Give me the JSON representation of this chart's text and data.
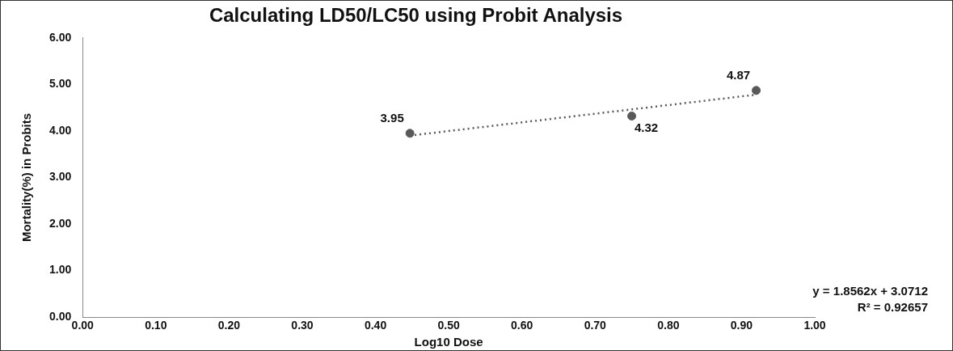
{
  "chart_data": {
    "type": "scatter",
    "title": "Calculating LD50/LC50 using Probit Analysis",
    "xlabel": "Log10 Dose",
    "ylabel": "Mortality(%) in Probits",
    "series": [
      {
        "color": "#595959",
        "x": [
          0.447,
          0.75,
          0.92
        ],
        "values": [
          3.95,
          4.32,
          4.87
        ],
        "value_labels": [
          "3.95",
          "4.32",
          "4.87"
        ]
      },
      {
        "type": "line",
        "color": "#595959",
        "line_style": "dotted",
        "marker": "none",
        "x": [
          0.447,
          0.92
        ],
        "values": [
          3.9,
          4.78
        ]
      }
    ],
    "xlim": [
      0,
      1
    ],
    "ylim": [
      0,
      6
    ],
    "xticks": [
      {
        "value": 0,
        "label": "0.00"
      },
      {
        "value": 0.1,
        "label": "0.10"
      },
      {
        "value": 0.2,
        "label": "0.20"
      },
      {
        "value": 0.3,
        "label": "0.30"
      },
      {
        "value": 0.4,
        "label": "0.40"
      },
      {
        "value": 0.5,
        "label": "0.50"
      },
      {
        "value": 0.6,
        "label": "0.60"
      },
      {
        "value": 0.7,
        "label": "0.70"
      },
      {
        "value": 0.8,
        "label": "0.80"
      },
      {
        "value": 0.9,
        "label": "0.90"
      },
      {
        "value": 1,
        "label": "1.00"
      }
    ],
    "yticks": [
      {
        "value": 0,
        "label": "0.00"
      },
      {
        "value": 1,
        "label": "1.00"
      },
      {
        "value": 2,
        "label": "2.00"
      },
      {
        "value": 3,
        "label": "3.00"
      },
      {
        "value": 4,
        "label": "4.00"
      },
      {
        "value": 5,
        "label": "5.00"
      },
      {
        "value": 6,
        "label": "6.00"
      }
    ],
    "marker": "circle",
    "grid": false,
    "legend": false,
    "annotations": [
      "y = 1.8562x + 3.0712",
      "R² = 0.92657"
    ]
  }
}
